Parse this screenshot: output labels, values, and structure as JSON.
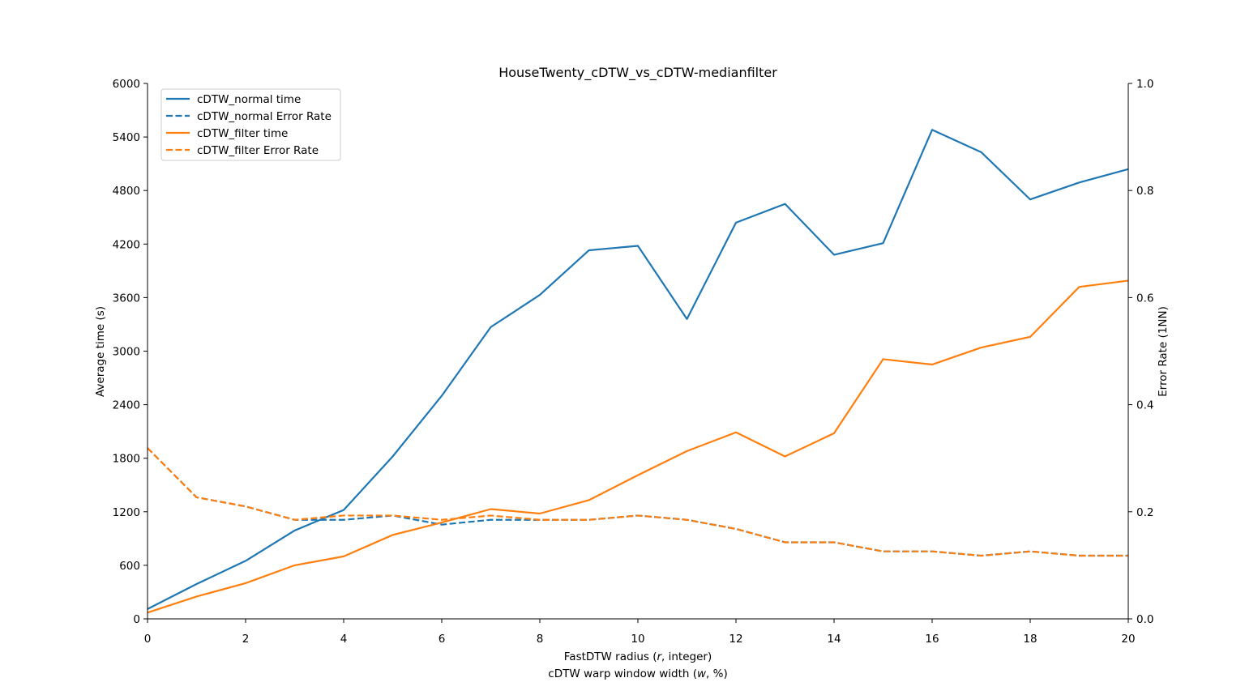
{
  "chart_data": {
    "type": "line",
    "title": "HouseTwenty_cDTW_vs_cDTW-medianfilter",
    "xlabel_line1_prefix": "FastDTW radius (",
    "xlabel_line1_var": "r",
    "xlabel_line1_suffix": ", integer)",
    "xlabel_line2_prefix": "cDTW warp window width (",
    "xlabel_line2_var": "w",
    "xlabel_line2_suffix": ", %)",
    "ylabel_left": "Average time (s)",
    "ylabel_right": "Error Rate (1NN)",
    "xlim": [
      0,
      20
    ],
    "ylim_left": [
      0,
      6000
    ],
    "ylim_right": [
      0.0,
      1.0
    ],
    "x_ticks": [
      "0",
      "2",
      "4",
      "6",
      "8",
      "10",
      "12",
      "14",
      "16",
      "18",
      "20"
    ],
    "y_left_ticks": [
      "0",
      "600",
      "1200",
      "1800",
      "2400",
      "3000",
      "3600",
      "4200",
      "4800",
      "5400",
      "6000"
    ],
    "y_right_ticks": [
      "0.0",
      "0.2",
      "0.4",
      "0.6",
      "0.8",
      "1.0"
    ],
    "legend_position": "top-left",
    "x": [
      0,
      1,
      2,
      3,
      4,
      5,
      6,
      7,
      8,
      9,
      10,
      11,
      12,
      13,
      14,
      15,
      16,
      17,
      18,
      19,
      20
    ],
    "series": [
      {
        "name": "cDTW_normal time",
        "axis": "left",
        "style": "solid",
        "color": "#1f77b4",
        "values": [
          110,
          390,
          650,
          990,
          1220,
          1820,
          2500,
          3270,
          3630,
          4130,
          4180,
          3360,
          4440,
          4650,
          4080,
          4210,
          5480,
          5230,
          4700,
          4890,
          5040
        ]
      },
      {
        "name": "cDTW_normal Error Rate",
        "axis": "right",
        "style": "dashed",
        "color": "#1f77b4",
        "values": [
          0.319,
          0.227,
          0.21,
          0.185,
          0.185,
          0.193,
          0.176,
          0.185,
          0.185,
          0.185,
          0.193,
          0.185,
          0.168,
          0.143,
          0.143,
          0.126,
          0.126,
          0.118,
          0.126,
          0.118,
          0.118
        ]
      },
      {
        "name": "cDTW_filter time",
        "axis": "left",
        "style": "solid",
        "color": "#ff7f0e",
        "values": [
          70,
          250,
          400,
          600,
          700,
          940,
          1080,
          1230,
          1180,
          1330,
          1610,
          1880,
          2090,
          1820,
          2080,
          2910,
          2850,
          3040,
          3160,
          3720,
          3790
        ]
      },
      {
        "name": "cDTW_filter Error Rate",
        "axis": "right",
        "style": "dashed",
        "color": "#ff7f0e",
        "values": [
          0.319,
          0.227,
          0.21,
          0.185,
          0.193,
          0.193,
          0.185,
          0.193,
          0.185,
          0.185,
          0.193,
          0.185,
          0.168,
          0.143,
          0.143,
          0.126,
          0.126,
          0.118,
          0.126,
          0.118,
          0.118
        ]
      }
    ]
  }
}
